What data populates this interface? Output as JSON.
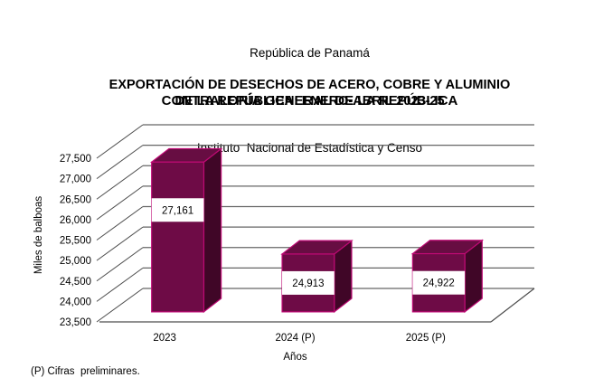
{
  "header": {
    "line1": "República de Panamá",
    "line2": "CONTRALORÍA GENERAL DE LA REPÚBLICA",
    "line3": "Instituto  Nacional de Estadística y Censo"
  },
  "footnote": "(P) Cifras  preliminares.",
  "chart_data": {
    "type": "bar",
    "style_3d": true,
    "title": "EXPORTACIÓN DE DESECHOS DE ACERO, COBRE Y ALUMINIO DE LA REPÚBLICA: ENERO-ABRIL 2023-25",
    "title_lines": [
      "EXPORTACIÓN DE DESECHOS DE ACERO, COBRE Y ALUMINIO",
      "DE LA REPÚBLICA: ENERO-ABRIL 2023-25"
    ],
    "categories": [
      "2023",
      "2024 (P)",
      "2025 (P)"
    ],
    "values": [
      27161,
      24913,
      24922
    ],
    "value_labels": [
      "27,161",
      "24,913",
      "24,922"
    ],
    "xlabel": "Años",
    "ylabel": "Miles de balboas",
    "ylim": [
      23500,
      27500
    ],
    "ytick_step": 500,
    "grid": true,
    "legend": "none",
    "colors": {
      "bar_front": "#6E0B46",
      "bar_top": "#670D42",
      "bar_side": "#400627",
      "bar_edge": "#BE0A74",
      "gridline": "#666666",
      "axis_line": "#4D4D4D"
    }
  }
}
